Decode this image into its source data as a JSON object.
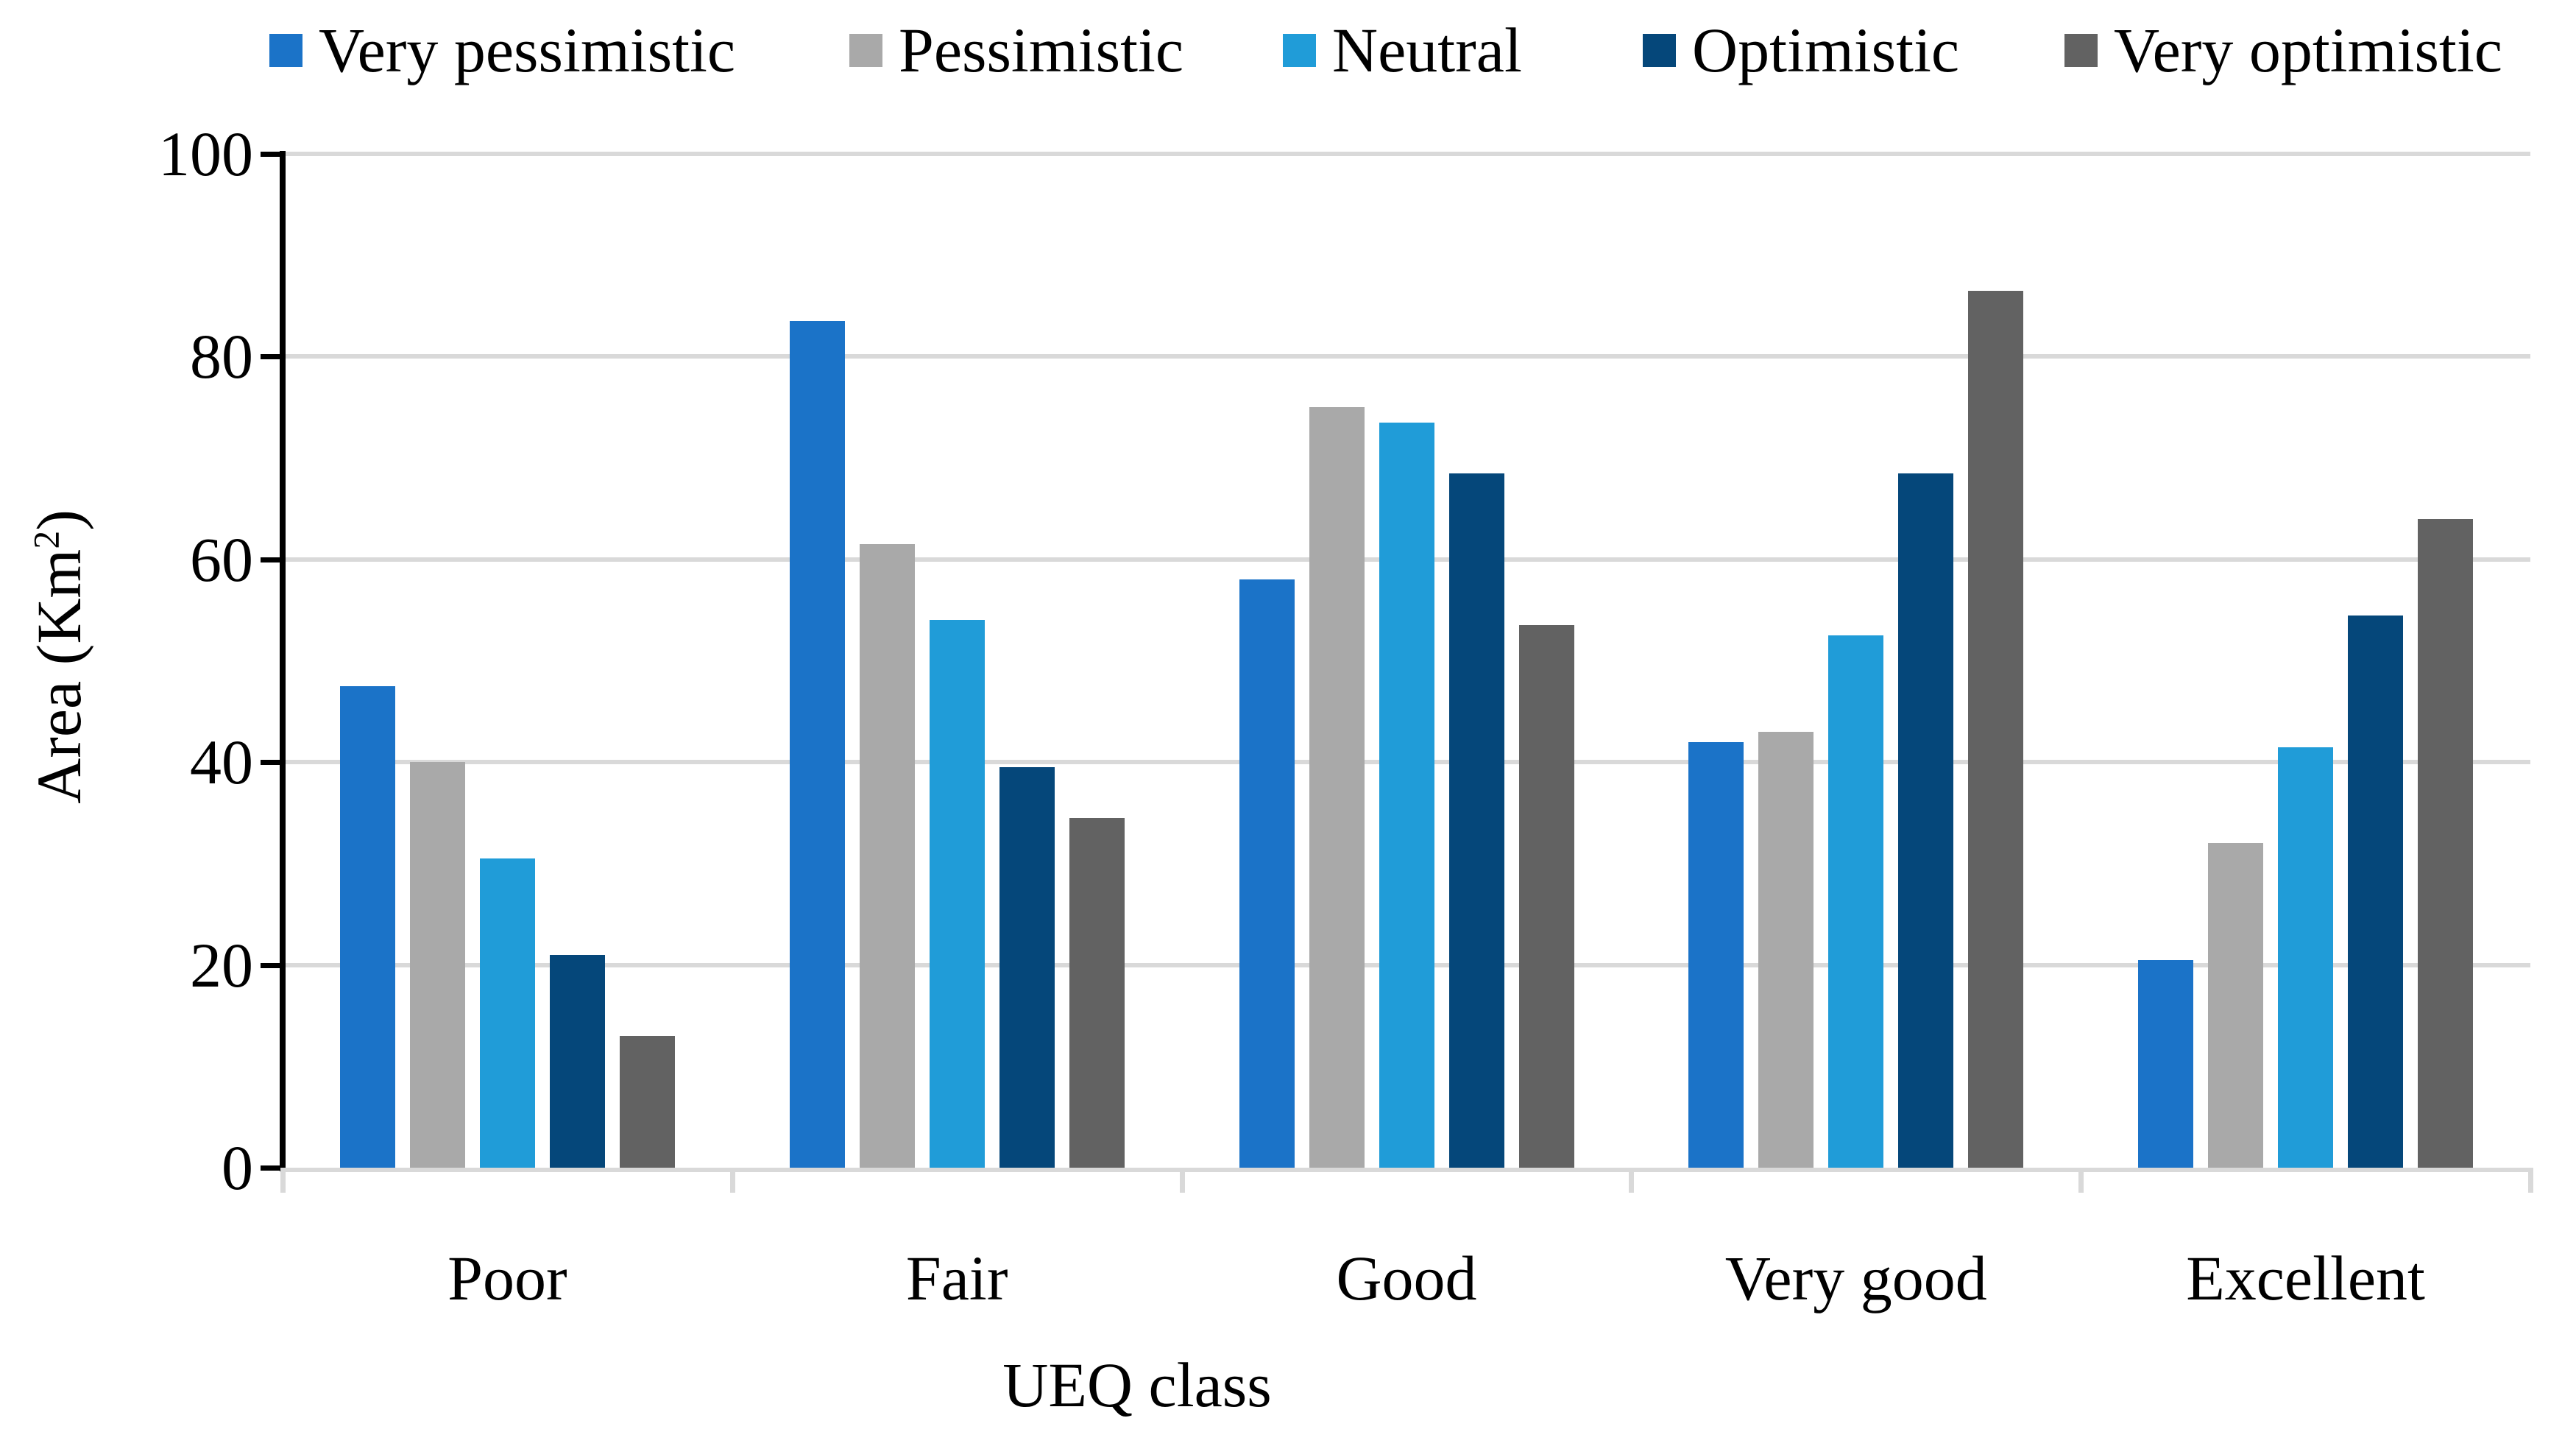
{
  "chart_data": {
    "type": "bar",
    "title": "",
    "categories": [
      "Poor",
      "Fair",
      "Good",
      "Very good",
      "Excellent"
    ],
    "series": [
      {
        "name": "Very pessimistic",
        "color": "#1B73C8",
        "values": [
          47.5,
          83.5,
          58,
          42,
          20.5
        ]
      },
      {
        "name": "Pessimistic",
        "color": "#A9A9A9",
        "values": [
          40,
          61.5,
          75,
          43,
          32
        ]
      },
      {
        "name": "Neutral",
        "color": "#209CD8",
        "values": [
          30.5,
          54,
          73.5,
          52.5,
          41.5
        ]
      },
      {
        "name": "Optimistic",
        "color": "#05477A",
        "values": [
          21,
          39.5,
          68.5,
          68.5,
          54.5
        ]
      },
      {
        "name": "Very optimistic",
        "color": "#626262",
        "values": [
          13,
          34.5,
          53.5,
          86.5,
          64
        ]
      }
    ],
    "xlabel": "UEQ class",
    "ylabel": "Area (Km²)",
    "ylabel_prefix": "Area (Km",
    "ylabel_sup": "2",
    "ylabel_suffix": ")",
    "ylim": [
      0,
      100
    ],
    "yticks": [
      0,
      20,
      40,
      60,
      80,
      100
    ],
    "grid": true,
    "legend_position": "top",
    "gridline_color": "#D9D9D9",
    "baseline_color": "#D9D9D9",
    "axis_color": "#000000",
    "background_color": "#FFFFFF"
  }
}
